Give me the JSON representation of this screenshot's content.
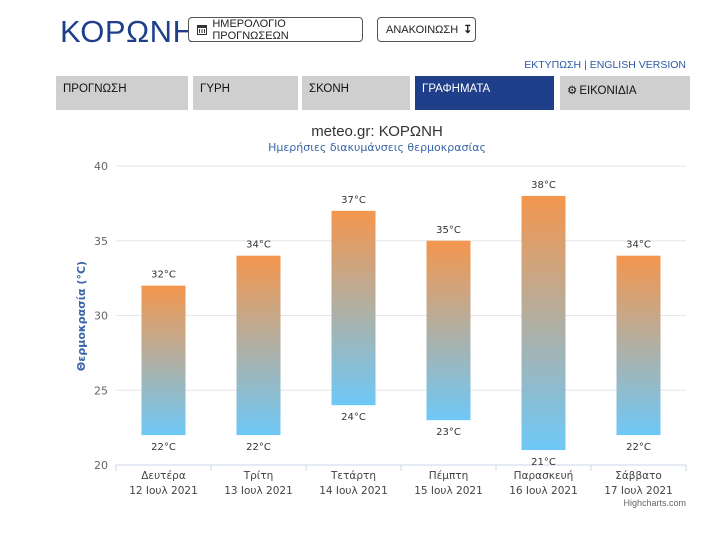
{
  "header": {
    "city": "ΚΟΡΩΝΗ",
    "calendar_button": "ΗΜΕΡΟΛΟΓΙΟ ΠΡΟΓΝΩΣΕΩΝ",
    "calendar_icon": "calendar-icon",
    "announcement_button": "ΑΝΑΚΟΙΝΩΣΗ",
    "announcement_icon": "sort-down-icon"
  },
  "links": {
    "print": "ΕΚΤΥΠΩΣΗ",
    "separator": "|",
    "english": "ENGLISH VERSION"
  },
  "tabs": [
    {
      "label": "ΠΡΟΓΝΩΣΗ"
    },
    {
      "label": "ΓΥΡΗ"
    },
    {
      "label": "ΣΚΟΝΗ"
    },
    {
      "label": "ΓΡΑΦΗΜΑΤΑ",
      "active": true
    },
    {
      "label": "ΕΙΚΟΝΙΔΙΑ",
      "icon": "gear-icon"
    }
  ],
  "colors": {
    "brand": "#1f3f8a",
    "bar_top": "#f4964e",
    "bar_bottom": "#6ec8f7"
  },
  "chart_data": {
    "type": "bar",
    "subtype": "columnrange",
    "title": "meteo.gr: ΚΟΡΩΝΗ",
    "subtitle": "Ημερήσιες διακυμάνσεις θερμοκρασίας",
    "ylabel": "Θερμοκρασία (°C)",
    "ylim": [
      20,
      40
    ],
    "yticks": [
      20,
      25,
      30,
      35,
      40
    ],
    "grid": true,
    "unit": "°C",
    "categories": [
      {
        "day": "Δευτέρα",
        "date": "12 Ιουλ 2021"
      },
      {
        "day": "Τρίτη",
        "date": "13 Ιουλ 2021"
      },
      {
        "day": "Τετάρτη",
        "date": "14 Ιουλ 2021"
      },
      {
        "day": "Πέμπτη",
        "date": "15 Ιουλ 2021"
      },
      {
        "day": "Παρασκευή",
        "date": "16 Ιουλ 2021"
      },
      {
        "day": "Σάββατο",
        "date": "17 Ιουλ 2021"
      }
    ],
    "low": [
      22,
      22,
      24,
      23,
      21,
      22
    ],
    "high": [
      32,
      34,
      37,
      35,
      38,
      34
    ],
    "credits": "Highcharts.com"
  }
}
